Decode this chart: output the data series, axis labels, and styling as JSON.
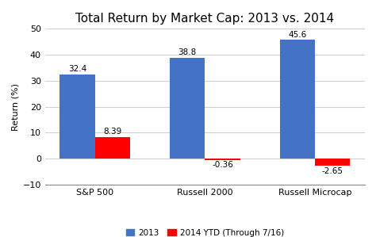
{
  "title": "Total Return by Market Cap: 2013 vs. 2014",
  "categories": [
    "S&P 500",
    "Russell 2000",
    "Russell Microcap"
  ],
  "series_2013": [
    32.4,
    38.8,
    45.6
  ],
  "series_2014": [
    8.39,
    -0.36,
    -2.65
  ],
  "color_2013": "#4472C4",
  "color_2014": "#FF0000",
  "ylabel": "Return (%)",
  "ylim": [
    -10,
    50
  ],
  "yticks": [
    -10,
    0,
    10,
    20,
    30,
    40,
    50
  ],
  "legend_2013": "2013",
  "legend_2014": "2014 YTD (Through 7/16)",
  "bar_width": 0.32,
  "background_color": "#FFFFFF",
  "title_fontsize": 11,
  "label_fontsize": 7.5,
  "tick_fontsize": 8,
  "ylabel_fontsize": 8,
  "legend_fontsize": 7.5
}
